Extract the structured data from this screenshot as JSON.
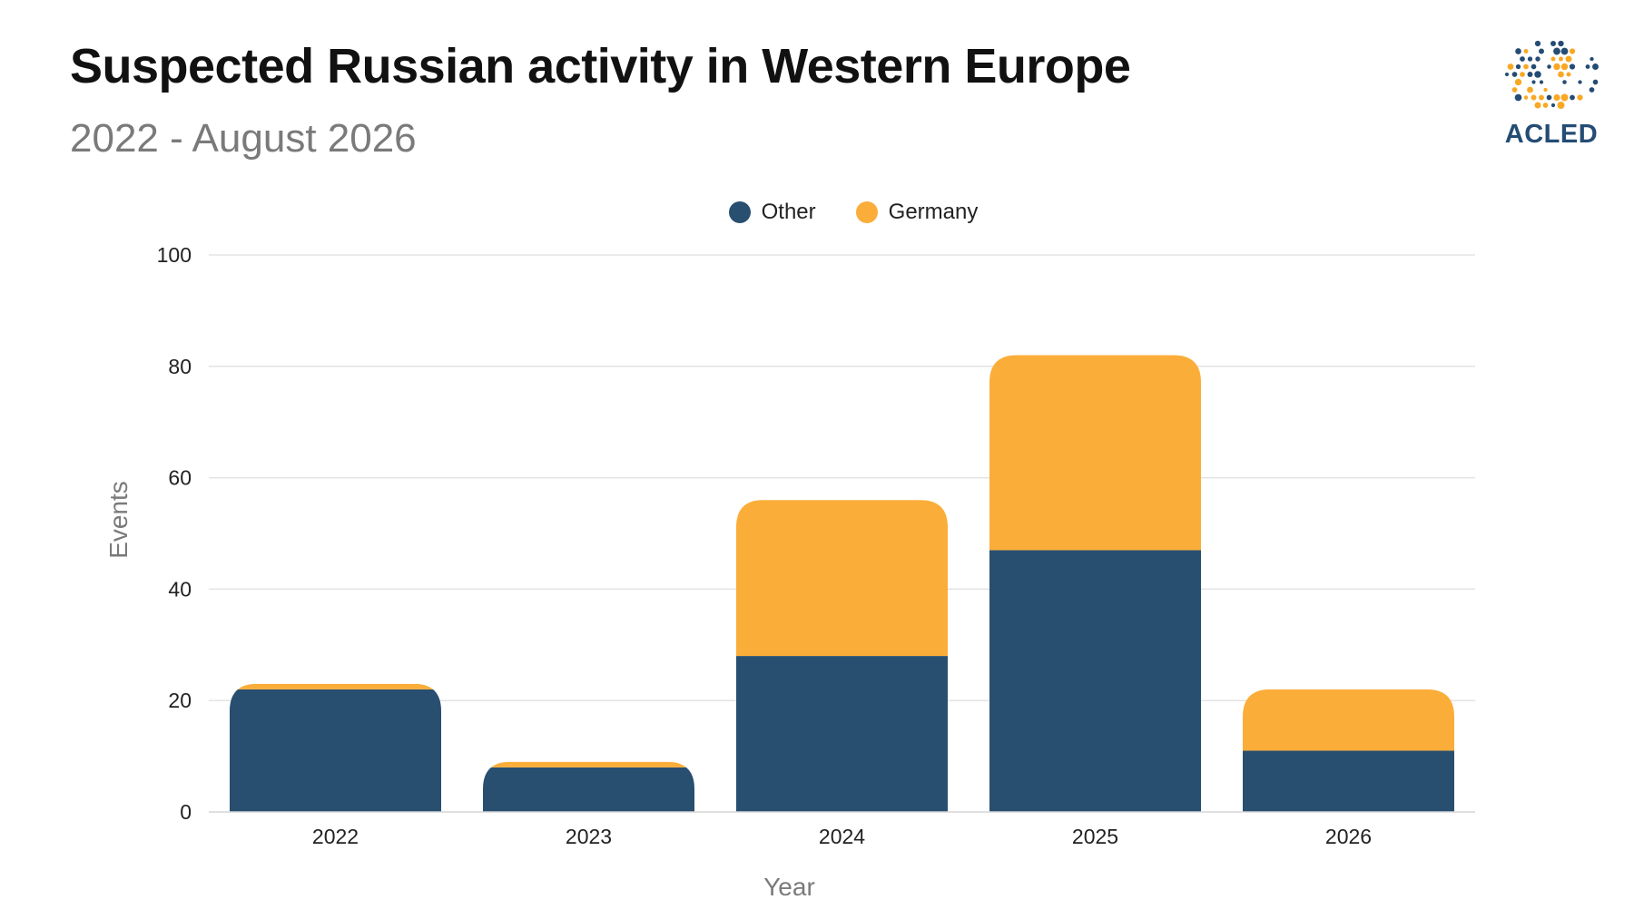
{
  "header": {
    "title": "Suspected Russian activity in Western Europe",
    "subtitle": "2022 - August 2026"
  },
  "logo": {
    "text": "ACLED",
    "icon": "globe-dots-icon",
    "colors": [
      "#244c74",
      "#f9a825"
    ]
  },
  "chart_data": {
    "type": "bar",
    "stacked": true,
    "categories": [
      "2022",
      "2023",
      "2024",
      "2025",
      "2026"
    ],
    "series": [
      {
        "name": "Other",
        "color": "#284f70",
        "values": [
          22,
          8,
          28,
          47,
          11
        ]
      },
      {
        "name": "Germany",
        "color": "#fbad39",
        "values": [
          1,
          1,
          28,
          35,
          11
        ]
      }
    ],
    "xlabel": "Year",
    "ylabel": "Events",
    "ylim": [
      0,
      100
    ],
    "yticks": [
      0,
      20,
      40,
      60,
      80,
      100
    ],
    "grid": true,
    "legend_position": "top-center"
  }
}
